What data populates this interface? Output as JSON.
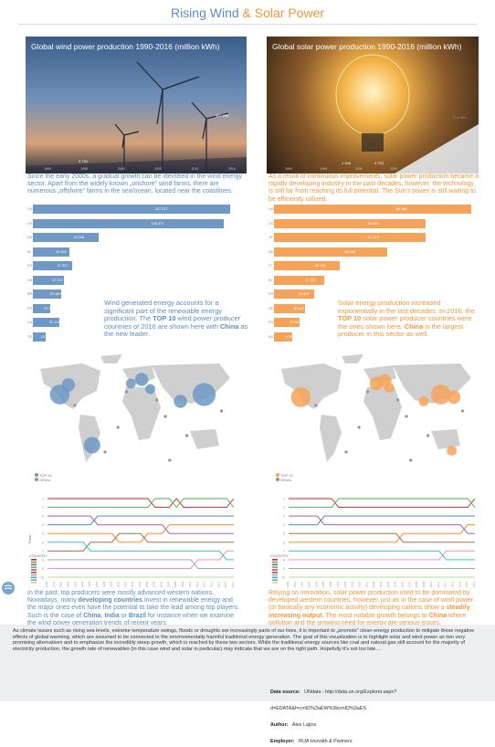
{
  "header": {
    "title_part1": "Rising Wind",
    "title_amp": "&",
    "title_part2": "Solar Power"
  },
  "wind": {
    "panel_title": "Global wind power production 1990-2016 (million kWh)",
    "panel_values": {
      "start": "3 732",
      "end": "957 699"
    },
    "panel_axis": [
      "1990",
      "1995",
      "2000",
      "2005",
      "2010",
      "2016"
    ],
    "intro": "Since the early 2000s, a gradual growth can be identified in the wind energy sector. Apart from the widely known „onshore” wind farms, there are numerous „offshore” farms in the sea/ocean, located near the coastlines.",
    "callout_pre": "Wind generated energy accounts for a significant part of the renewable energy production. The ",
    "callout_bold1": "TOP 10",
    "callout_mid": " wind power producer countries of 2016 are shown here with ",
    "callout_bold2": "China",
    "callout_post": " as the new leader.",
    "map_legend": [
      "TOP 10",
      "Others"
    ],
    "bump_legend_title": "COUNTRY",
    "bump_axis_label": "Rank",
    "outro_1": "In the past, top producers were mostly advanced western nations. Nowadays, many ",
    "outro_b1": "developing countries",
    "outro_2": " invest in renewable energy and the major ones even have the potential to take the lead among top players. Such is the case of ",
    "outro_b2": "China",
    "outro_3": ", ",
    "outro_b3": "India",
    "outro_4": " or ",
    "outro_b4": "Brazil",
    "outro_5": " for instance when we examine the wind power generation trends of recent years."
  },
  "solar": {
    "panel_title": "Global solar power production 1990-2016 (million kWh)",
    "panel_values": {
      "start": "1 006",
      "mid": "4 753",
      "end": "393 983"
    },
    "panel_axis": [
      "1990",
      "1995",
      "2000",
      "2005",
      "2010",
      "2016"
    ],
    "intro": "As a result of continuous improvements, solar power production became a rapidly developing industry in the past decades, however, the technology is still far from reaching its full potential. The Sun’s power is still waiting to be efficiently utilized.",
    "callout_pre": "Solar energy production increased exponentially in the last decades. In 2016, the ",
    "callout_bold1": "TOP 10",
    "callout_mid": " solar power producer countries were the ones shown here. ",
    "callout_bold2": "China",
    "callout_post": " is the largest producer in this sector as well.",
    "map_legend": [
      "TOP 10",
      "Others"
    ],
    "bump_legend_title": "COUNTRY",
    "outro_1": "Relying on innovation, solar power production used to be dominated by developed western countries, however, just as in the case of wind power (or basically any economic activity) developing nations show a ",
    "outro_b1": "steadily increasing output",
    "outro_2": ". The most notable growth belongs to ",
    "outro_b2": "China",
    "outro_3": " where pollution and the growing need for energy are serious issues."
  },
  "footer": {
    "text": "As climate issues such as rising sea levels, extreme temperature swings, floods or droughts are increasingly parts of our lives, it is important to „promote” clean energy production to mitigate these negative effects of global warming, which are assumed to be connected to the environmentally harmful traditional energy generation. The goal of this visualization is to highlight solar and wind power as two very promising alternatives and to emphasize the incredibly steep growth, which is reached by these two sectors. While the traditional energy sources like coal and natural gas still account for the majority of electricity production, the growth rate of renewables (in this case wind and solar in particular) may indicate that we are on the right path. Hopefully it’s not too late....",
    "data_source_label": "Data source:",
    "data_source_value": "UNdata - http://data.un.org/Explorer.aspx?d=EDATA&f=cmID%3aEW%3bcmID%3aES",
    "author_label": "Author:",
    "author_value": "Alex Lajtos",
    "employer_label": "Employer:",
    "employer_value": "IRJA Horváth & Partners"
  },
  "colors": {
    "wind": "#6f98c4",
    "solar": "#f6a35a",
    "title_blue": "#5b8ec2",
    "title_orange": "#f0963a",
    "others": "#a98a92"
  },
  "chart_data": [
    {
      "type": "area",
      "title": "Global wind power production 1990-2016 (million kWh)",
      "x": [
        1990,
        2016
      ],
      "values": [
        3732,
        957699
      ]
    },
    {
      "type": "area",
      "title": "Global solar power production 1990-2016 (million kWh)",
      "x": [
        1990,
        2004,
        2016
      ],
      "values": [
        1006,
        4753,
        393983
      ]
    },
    {
      "type": "bar",
      "orientation": "horizontal",
      "categories": [
        "CN",
        "US",
        "DE",
        "IN",
        "ES",
        "UK",
        "BR",
        "FR",
        "CA",
        "TR"
      ],
      "values": [
        237071,
        229471,
        78598,
        44005,
        47337,
        37201,
        33489,
        21382,
        32100,
        15517
      ],
      "value_labels": [
        "237 071",
        "229 471",
        "78 598",
        "44 005",
        "47 337",
        "37 201",
        "33 489",
        "21 382",
        "32 100",
        "15 517"
      ]
    },
    {
      "type": "bar",
      "orientation": "horizontal",
      "categories": [
        "CN",
        "US",
        "JP",
        "DE",
        "IT",
        "IN",
        "ES",
        "UK",
        "FR",
        "AU"
      ],
      "values": [
        66188,
        50803,
        51019,
        38098,
        22104,
        17000,
        13400,
        10420,
        8658,
        6209
      ],
      "value_labels": [
        "66 188",
        "50 803",
        "51 019",
        "38 098",
        "22 104",
        "17 000",
        "13 400",
        "10 420",
        "8 658",
        "6 209"
      ]
    },
    {
      "type": "scatter",
      "title": "",
      "legend": [
        "TOP 10",
        "Others"
      ],
      "points": [
        {
          "x": 15,
          "y": 32,
          "size": 6,
          "group": "TOP 10"
        },
        {
          "x": 19,
          "y": 25,
          "size": 4,
          "group": "TOP 10"
        },
        {
          "x": 30,
          "y": 69,
          "size": 5,
          "group": "TOP 10"
        },
        {
          "x": 48,
          "y": 24,
          "size": 3,
          "group": "TOP 10"
        },
        {
          "x": 53,
          "y": 21,
          "size": 4,
          "group": "TOP 10"
        },
        {
          "x": 57,
          "y": 28,
          "size": 3,
          "group": "TOP 10"
        },
        {
          "x": 71,
          "y": 37,
          "size": 4,
          "group": "TOP 10"
        },
        {
          "x": 82,
          "y": 32,
          "size": 7,
          "group": "TOP 10"
        }
      ]
    },
    {
      "type": "scatter",
      "title": "",
      "legend": [
        "TOP 10",
        "Others"
      ],
      "points": [
        {
          "x": 15,
          "y": 34,
          "size": 6,
          "group": "TOP 10"
        },
        {
          "x": 50,
          "y": 24,
          "size": 4,
          "group": "TOP 10"
        },
        {
          "x": 54,
          "y": 22,
          "size": 4,
          "group": "TOP 10"
        },
        {
          "x": 56,
          "y": 27,
          "size": 3,
          "group": "TOP 10"
        },
        {
          "x": 72,
          "y": 37,
          "size": 3,
          "group": "TOP 10"
        },
        {
          "x": 80,
          "y": 32,
          "size": 6,
          "group": "TOP 10"
        },
        {
          "x": 86,
          "y": 34,
          "size": 4,
          "group": "TOP 10"
        },
        {
          "x": 85,
          "y": 73,
          "size": 3,
          "group": "TOP 10"
        }
      ]
    },
    {
      "type": "line",
      "title": "",
      "ylabel": "Rank",
      "x": [
        1990,
        1991,
        1992,
        1993,
        1994,
        1995,
        1996,
        1997,
        1998,
        1999,
        2000,
        2001,
        2002,
        2003,
        2004,
        2005,
        2006,
        2007,
        2008,
        2009,
        2010,
        2011,
        2012,
        2013,
        2014,
        2015,
        2016
      ],
      "series": [
        {
          "values": [
            1,
            1,
            1,
            1,
            1,
            1,
            1,
            1,
            1,
            1,
            1,
            1,
            1,
            1,
            1,
            2,
            2,
            2,
            1,
            2,
            2,
            2,
            2,
            2,
            2,
            2,
            1
          ],
          "color": "#e41a1c"
        },
        {
          "values": [
            2,
            2,
            2,
            2,
            2,
            2,
            2,
            2,
            2,
            2,
            2,
            2,
            2,
            2,
            2,
            1,
            1,
            1,
            2,
            1,
            1,
            1,
            1,
            1,
            1,
            1,
            2
          ],
          "color": "#4daf4a"
        },
        {
          "values": [
            4,
            4,
            4,
            4,
            4,
            4,
            4,
            3,
            3,
            3,
            3,
            3,
            3,
            3,
            3,
            3,
            3,
            3,
            3,
            3,
            3,
            3,
            3,
            3,
            3,
            3,
            3
          ],
          "color": "#377eb8"
        },
        {
          "values": [
            5,
            5,
            5,
            5,
            5,
            5,
            5,
            5,
            5,
            5,
            6,
            6,
            6,
            6,
            5,
            5,
            5,
            4,
            4,
            4,
            4,
            4,
            4,
            4,
            4,
            4,
            4
          ],
          "color": "#ff7f00"
        },
        {
          "values": [
            3,
            3,
            3,
            3,
            3,
            3,
            3,
            4,
            4,
            4,
            4,
            4,
            4,
            4,
            4,
            4,
            4,
            5,
            5,
            5,
            5,
            5,
            5,
            5,
            5,
            5,
            5
          ],
          "color": "#984ea3"
        },
        {
          "values": [
            7,
            7,
            7,
            7,
            7,
            7,
            6,
            6,
            6,
            6,
            5,
            5,
            5,
            5,
            6,
            6,
            6,
            6,
            6,
            6,
            6,
            6,
            6,
            6,
            6,
            6,
            6
          ],
          "color": "#a65628"
        },
        {
          "values": [
            9,
            9,
            9,
            9,
            9,
            9,
            9,
            9,
            9,
            9,
            9,
            9,
            9,
            9,
            9,
            9,
            9,
            9,
            9,
            9,
            9,
            8,
            8,
            8,
            8,
            7,
            7
          ],
          "color": "#f781bf"
        },
        {
          "values": [
            6,
            6,
            6,
            6,
            6,
            6,
            7,
            7,
            7,
            7,
            7,
            7,
            7,
            7,
            7,
            7,
            7,
            7,
            7,
            7,
            7,
            7,
            7,
            7,
            7,
            8,
            8
          ],
          "color": "#17becf"
        },
        {
          "values": [
            8,
            8,
            8,
            8,
            8,
            8,
            8,
            8,
            8,
            8,
            8,
            8,
            8,
            8,
            8,
            8,
            8,
            8,
            8,
            8,
            8,
            9,
            9,
            9,
            9,
            9,
            9
          ],
          "color": "#999999"
        },
        {
          "values": [
            10,
            10,
            10,
            10,
            10,
            10,
            10,
            10,
            10,
            10,
            10,
            10,
            10,
            10,
            10,
            10,
            10,
            10,
            10,
            10,
            10,
            10,
            10,
            10,
            10,
            10,
            10
          ],
          "color": "#b8e186"
        }
      ],
      "ylim": [
        1,
        10
      ]
    },
    {
      "type": "line",
      "title": "",
      "x": [
        1990,
        1991,
        1992,
        1993,
        1994,
        1995,
        1996,
        1997,
        1998,
        1999,
        2000,
        2001,
        2002,
        2003,
        2004,
        2005,
        2006,
        2007,
        2008,
        2009,
        2010,
        2011,
        2012,
        2013,
        2014,
        2015,
        2016
      ],
      "series": [
        {
          "values": [
            1,
            1,
            1,
            1,
            1,
            1,
            1,
            2,
            2,
            2,
            2,
            2,
            2,
            2,
            2,
            2,
            2,
            2,
            2,
            2,
            2,
            2,
            2,
            2,
            2,
            2,
            1
          ],
          "color": "#e41a1c"
        },
        {
          "values": [
            2,
            2,
            2,
            2,
            2,
            2,
            2,
            1,
            1,
            1,
            1,
            1,
            1,
            1,
            1,
            1,
            1,
            1,
            1,
            1,
            1,
            1,
            1,
            1,
            1,
            1,
            2
          ],
          "color": "#4daf4a"
        },
        {
          "values": [
            4,
            4,
            4,
            4,
            4,
            3,
            3,
            3,
            3,
            3,
            3,
            3,
            3,
            3,
            3,
            3,
            3,
            3,
            3,
            3,
            3,
            3,
            3,
            3,
            3,
            3,
            3
          ],
          "color": "#377eb8"
        },
        {
          "values": [
            6,
            6,
            6,
            6,
            6,
            6,
            6,
            6,
            6,
            6,
            6,
            6,
            6,
            6,
            6,
            6,
            5,
            5,
            5,
            5,
            5,
            5,
            5,
            5,
            5,
            4,
            4
          ],
          "color": "#ff7f00"
        },
        {
          "values": [
            3,
            3,
            3,
            3,
            3,
            4,
            4,
            4,
            4,
            4,
            4,
            4,
            4,
            4,
            4,
            4,
            4,
            4,
            4,
            4,
            4,
            4,
            4,
            4,
            4,
            5,
            5
          ],
          "color": "#984ea3"
        },
        {
          "values": [
            5,
            5,
            5,
            5,
            5,
            5,
            5,
            5,
            5,
            5,
            5,
            5,
            5,
            5,
            5,
            5,
            6,
            6,
            6,
            6,
            6,
            6,
            6,
            6,
            6,
            6,
            6
          ],
          "color": "#a65628"
        },
        {
          "values": [
            8,
            8,
            8,
            8,
            8,
            8,
            8,
            8,
            8,
            8,
            8,
            8,
            8,
            8,
            8,
            8,
            8,
            8,
            8,
            8,
            8,
            8,
            7,
            7,
            7,
            7,
            7
          ],
          "color": "#f781bf"
        },
        {
          "values": [
            7,
            7,
            7,
            7,
            7,
            7,
            7,
            7,
            7,
            7,
            7,
            7,
            7,
            7,
            7,
            7,
            7,
            7,
            7,
            7,
            7,
            7,
            8,
            8,
            8,
            8,
            8
          ],
          "color": "#17becf"
        },
        {
          "values": [
            9,
            9,
            9,
            9,
            9,
            9,
            9,
            9,
            9,
            9,
            9,
            9,
            9,
            9,
            9,
            9,
            9,
            9,
            9,
            9,
            9,
            9,
            9,
            9,
            9,
            9,
            9
          ],
          "color": "#999999"
        },
        {
          "values": [
            10,
            10,
            10,
            10,
            10,
            10,
            10,
            10,
            10,
            10,
            10,
            10,
            10,
            10,
            10,
            10,
            10,
            10,
            10,
            10,
            10,
            10,
            10,
            10,
            10,
            10,
            10
          ],
          "color": "#b8e186"
        }
      ],
      "ylim": [
        1,
        10
      ]
    }
  ]
}
